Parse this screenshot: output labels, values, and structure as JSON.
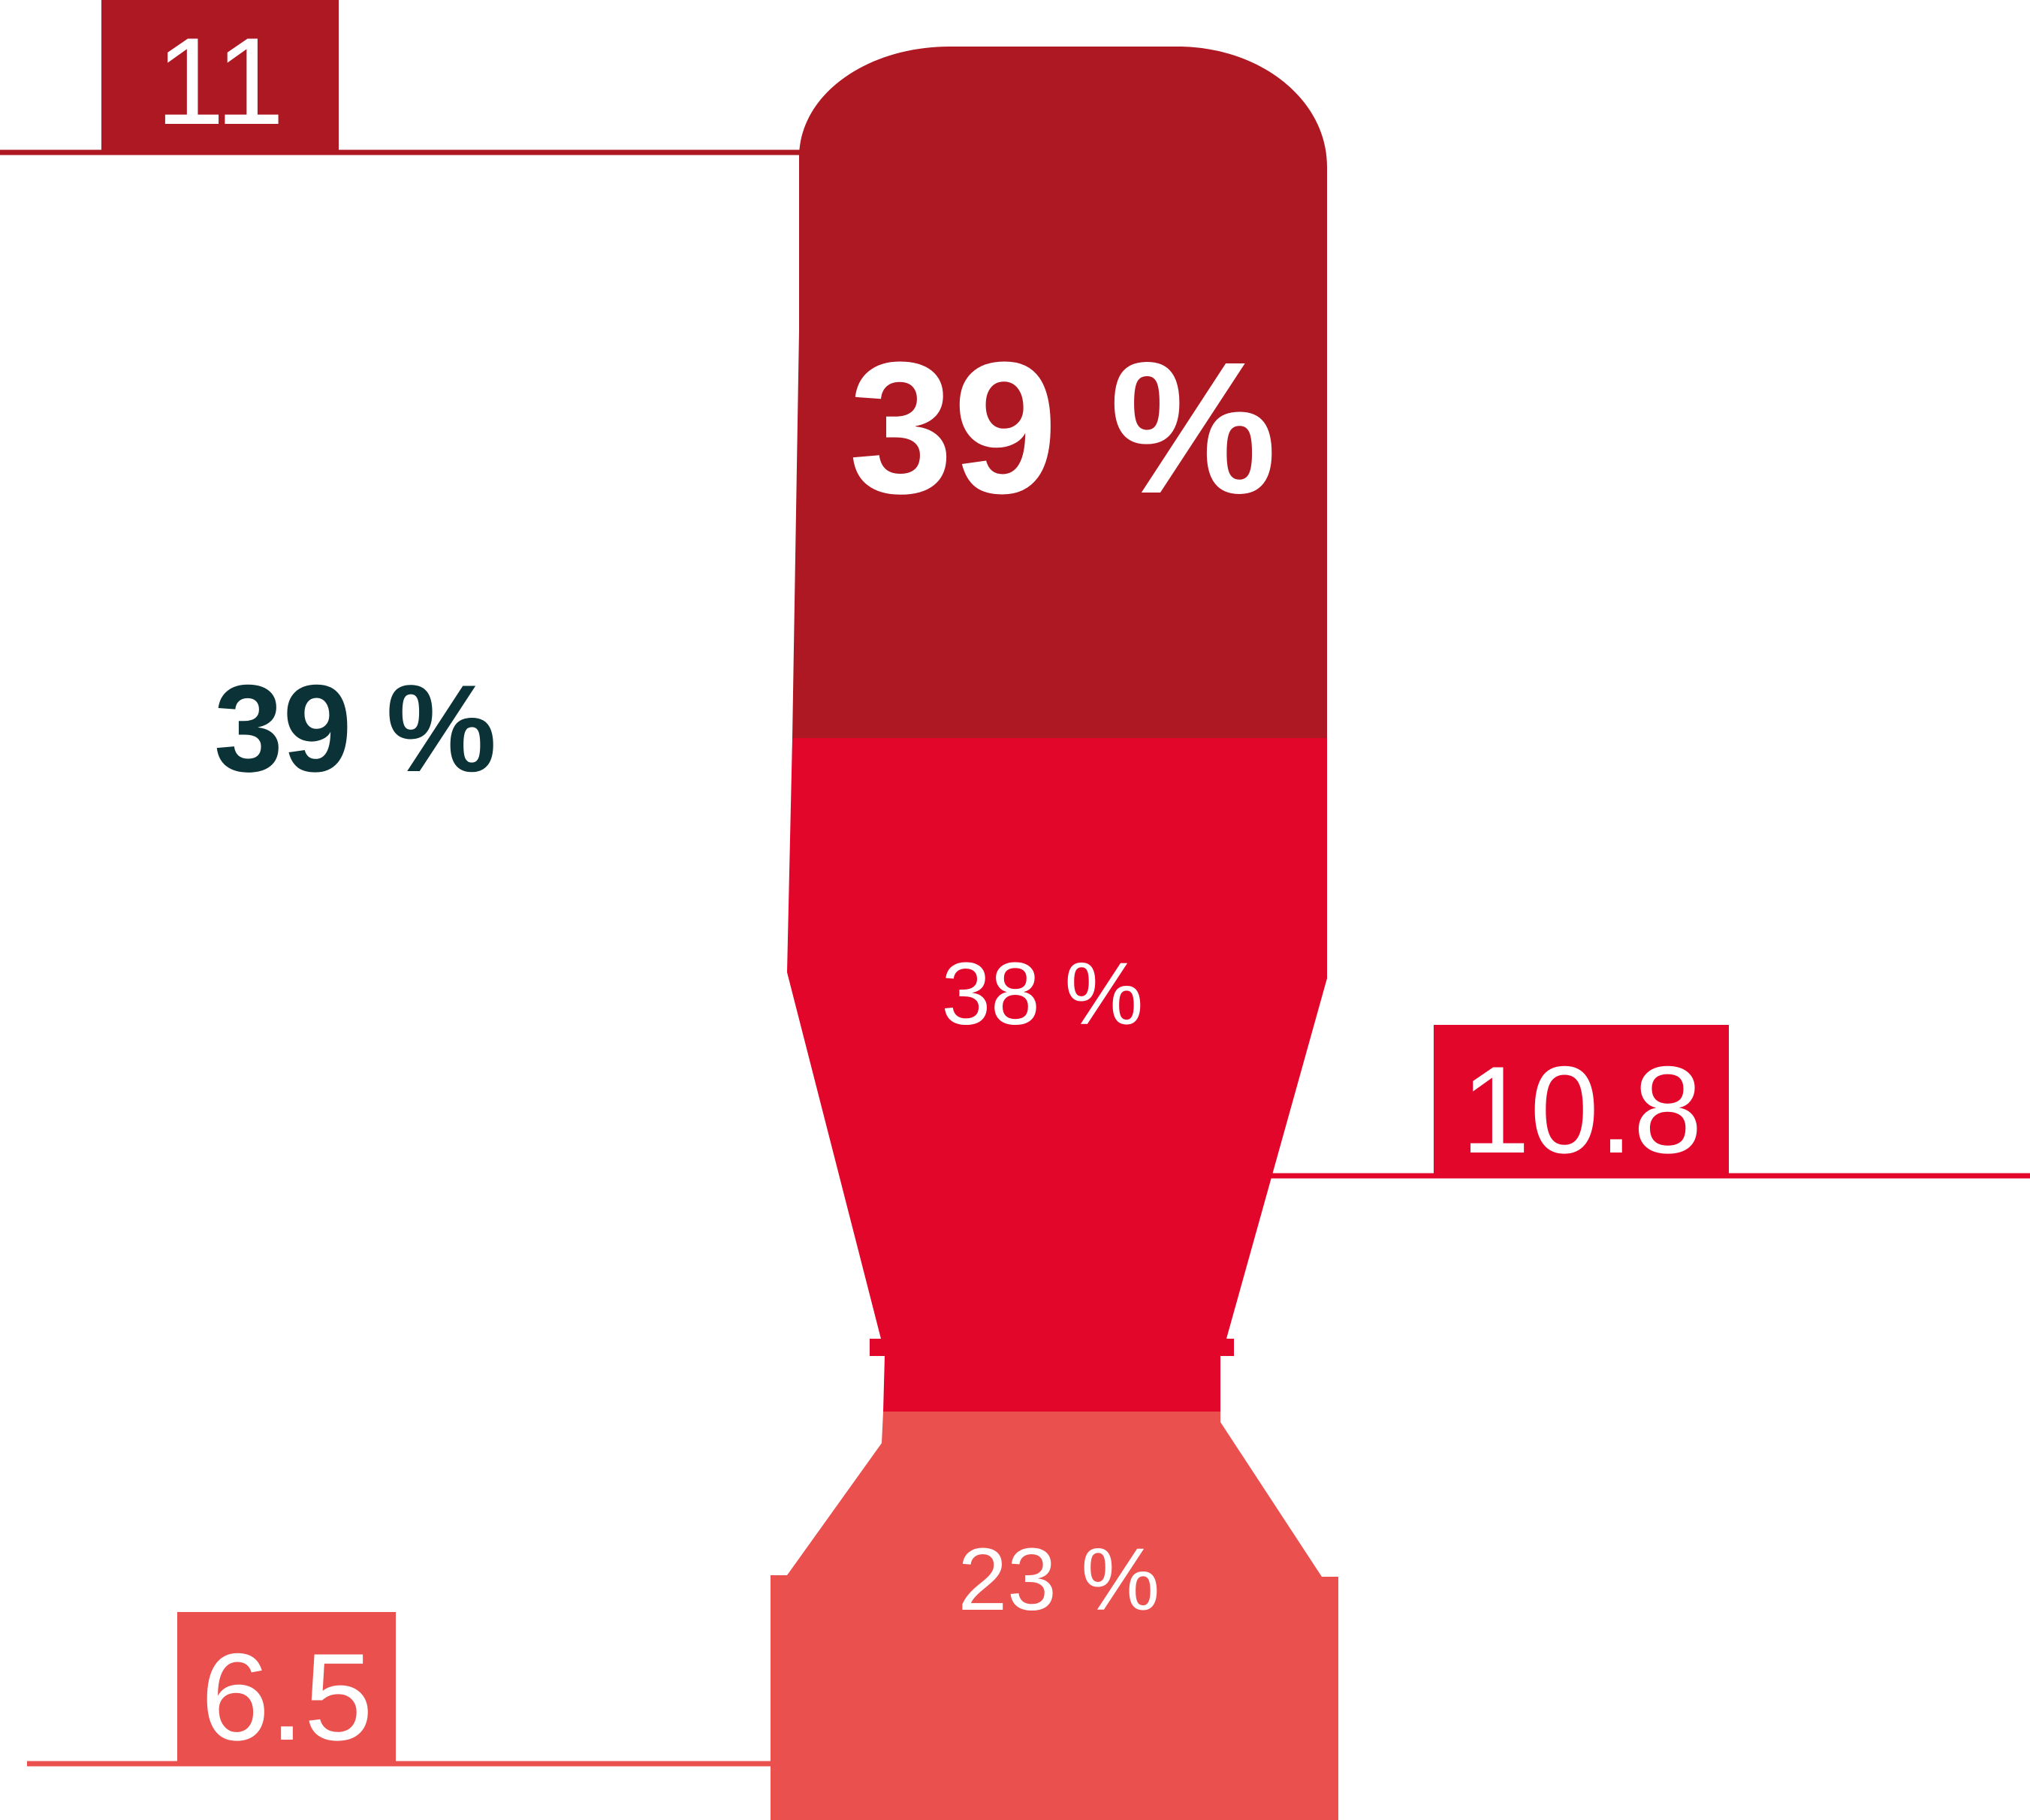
{
  "colors": {
    "top": "#ad1822",
    "middle": "#e3062b",
    "bottom": "#e9504e",
    "side_text": "#0b3236",
    "label_text": "#ffffff"
  },
  "segments": [
    {
      "id": "top",
      "percent": "39 %"
    },
    {
      "id": "middle",
      "percent": "38 %"
    },
    {
      "id": "bottom",
      "percent": "23 %"
    }
  ],
  "side_label": "39 %",
  "markers": [
    {
      "id": "top",
      "value": "11"
    },
    {
      "id": "middle",
      "value": "10.8"
    },
    {
      "id": "bottom",
      "value": "6.5"
    }
  ]
}
